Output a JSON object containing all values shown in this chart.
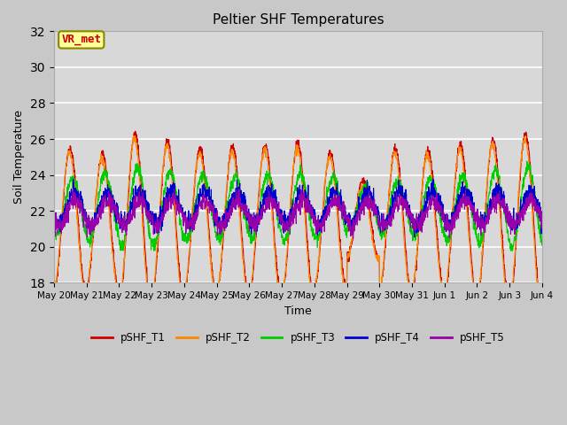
{
  "title": "Peltier SHF Temperatures",
  "xlabel": "Time",
  "ylabel": "Soil Temperature",
  "ylim": [
    18,
    32
  ],
  "yticks": [
    18,
    20,
    22,
    24,
    26,
    28,
    30,
    32
  ],
  "colors": {
    "pSHF_T1": "#cc0000",
    "pSHF_T2": "#ff8800",
    "pSHF_T3": "#00cc00",
    "pSHF_T4": "#0000cc",
    "pSHF_T5": "#9900aa"
  },
  "annotation_text": "VR_met",
  "annotation_color": "#cc0000",
  "annotation_bg": "#ffff99",
  "annotation_border": "#888800",
  "fig_bg": "#c8c8c8",
  "plot_bg": "#d8d8d8",
  "grid_color": "#ffffff",
  "xtick_labels": [
    "May 20",
    "May 21",
    "May 22",
    "May 23",
    "May 24",
    "May 25",
    "May 26",
    "May 27",
    "May 28",
    "May 29",
    "May 30",
    "May 31",
    "Jun 1",
    "Jun 2",
    "Jun 3",
    "Jun 4"
  ],
  "num_days": 15,
  "points_per_day": 144,
  "T1_base": 21.5,
  "T1_amp": 4.5,
  "T2_base": 21.3,
  "T2_amp": 4.3,
  "T3_base": 22.2,
  "T3_amp": 1.8,
  "T4_base": 22.2,
  "T4_amp": 0.9,
  "T5_base": 21.9,
  "T5_amp": 0.7
}
